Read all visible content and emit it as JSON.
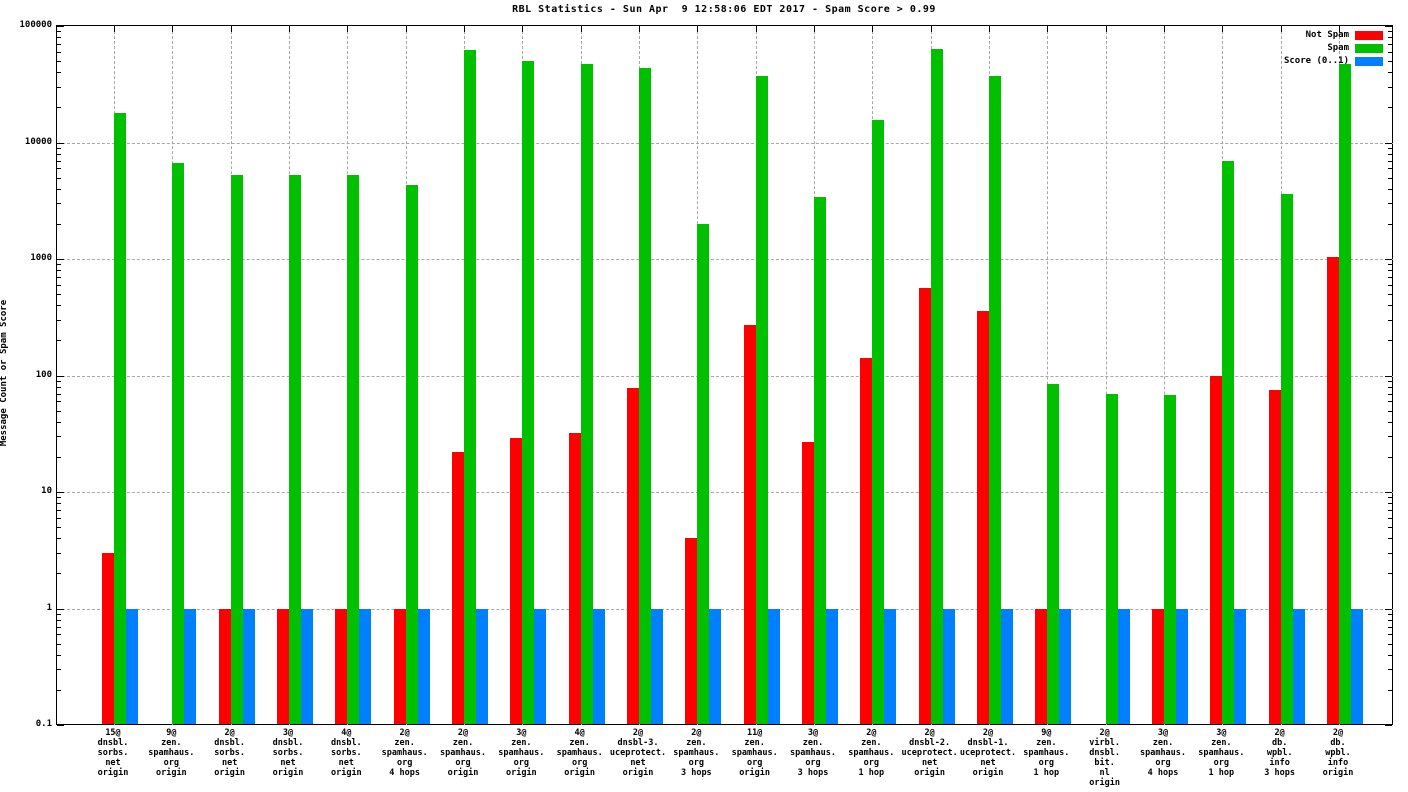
{
  "chart_data": {
    "type": "bar",
    "title": "RBL Statistics - Sun Apr  9 12:58:06 EDT 2017 - Spam Score > 0.99",
    "xlabel": "",
    "ylabel": "Message Count or Spam Score",
    "yscale": "log",
    "ylim": [
      0.1,
      100000
    ],
    "ytick_labels": [
      "100000",
      "10000",
      "1000",
      "100",
      "10",
      "1",
      "0.1"
    ],
    "grid": true,
    "legend_position": "top-right",
    "categories": [
      [
        "15@",
        "dnsbl.",
        "sorbs.",
        "net",
        "origin"
      ],
      [
        "9@",
        "zen.",
        "spamhaus.",
        "org",
        "origin"
      ],
      [
        "2@",
        "dnsbl.",
        "sorbs.",
        "net",
        "origin"
      ],
      [
        "3@",
        "dnsbl.",
        "sorbs.",
        "net",
        "origin"
      ],
      [
        "4@",
        "dnsbl.",
        "sorbs.",
        "net",
        "origin"
      ],
      [
        "2@",
        "zen.",
        "spamhaus.",
        "org",
        "4 hops"
      ],
      [
        "2@",
        "zen.",
        "spamhaus.",
        "org",
        "origin"
      ],
      [
        "3@",
        "zen.",
        "spamhaus.",
        "org",
        "origin"
      ],
      [
        "4@",
        "zen.",
        "spamhaus.",
        "org",
        "origin"
      ],
      [
        "2@",
        "dnsbl-3.",
        "uceprotect.",
        "net",
        "origin"
      ],
      [
        "2@",
        "zen.",
        "spamhaus.",
        "org",
        "3 hops"
      ],
      [
        "11@",
        "zen.",
        "spamhaus.",
        "org",
        "origin"
      ],
      [
        "3@",
        "zen.",
        "spamhaus.",
        "org",
        "3 hops"
      ],
      [
        "2@",
        "zen.",
        "spamhaus.",
        "org",
        "1 hop"
      ],
      [
        "2@",
        "dnsbl-2.",
        "uceprotect.",
        "net",
        "origin"
      ],
      [
        "2@",
        "dnsbl-1.",
        "uceprotect.",
        "net",
        "origin"
      ],
      [
        "9@",
        "zen.",
        "spamhaus.",
        "org",
        "1 hop"
      ],
      [
        "2@",
        "virbl.",
        "dnsbl.",
        "bit.",
        "nl",
        "origin"
      ],
      [
        "3@",
        "zen.",
        "spamhaus.",
        "org",
        "4 hops"
      ],
      [
        "3@",
        "zen.",
        "spamhaus.",
        "org",
        "1 hop"
      ],
      [
        "2@",
        "db.",
        "wpbl.",
        "info",
        "3 hops"
      ],
      [
        "2@",
        "db.",
        "wpbl.",
        "info",
        "origin"
      ]
    ],
    "series": [
      {
        "name": "Not Spam",
        "color": "#ff0000",
        "values": [
          3,
          null,
          1,
          1,
          1,
          1,
          22,
          29,
          32,
          78,
          4,
          270,
          27,
          140,
          560,
          360,
          1,
          null,
          1,
          100,
          75,
          1050
        ]
      },
      {
        "name": "Spam",
        "color": "#00c000",
        "values": [
          18000,
          6700,
          5300,
          5300,
          5300,
          4300,
          62000,
          50000,
          47000,
          44000,
          2000,
          37000,
          3400,
          15500,
          63000,
          37000,
          85,
          70,
          68,
          7000,
          3600,
          47000
        ]
      },
      {
        "name": "Score (0..1)",
        "color": "#0080ff",
        "values": [
          1,
          1,
          1,
          1,
          1,
          1,
          1,
          1,
          1,
          1,
          1,
          1,
          1,
          1,
          1,
          1,
          1,
          1,
          1,
          1,
          1,
          1
        ]
      }
    ]
  },
  "colors": {
    "grid": "#a8a8a8",
    "axis": "#000000",
    "background": "#ffffff"
  }
}
